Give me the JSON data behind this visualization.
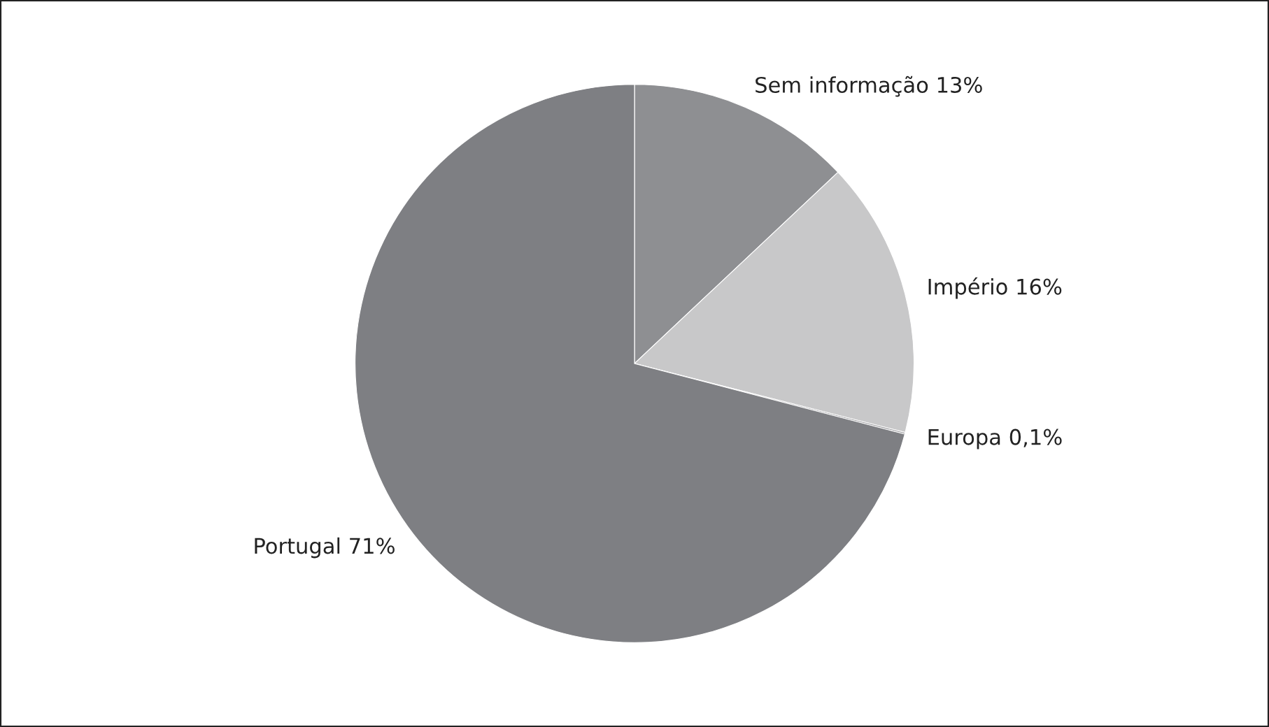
{
  "chart_data": {
    "type": "pie",
    "categories": [
      "Sem informação",
      "Império",
      "Europa",
      "Portugal"
    ],
    "values": [
      13,
      16,
      0.1,
      71
    ],
    "value_labels": [
      "13%",
      "16%",
      "0,1%",
      "71%"
    ],
    "colors": [
      "#8e8f92",
      "#c8c8c9",
      "#a0a0a3",
      "#7e7f83"
    ],
    "legend": false
  }
}
